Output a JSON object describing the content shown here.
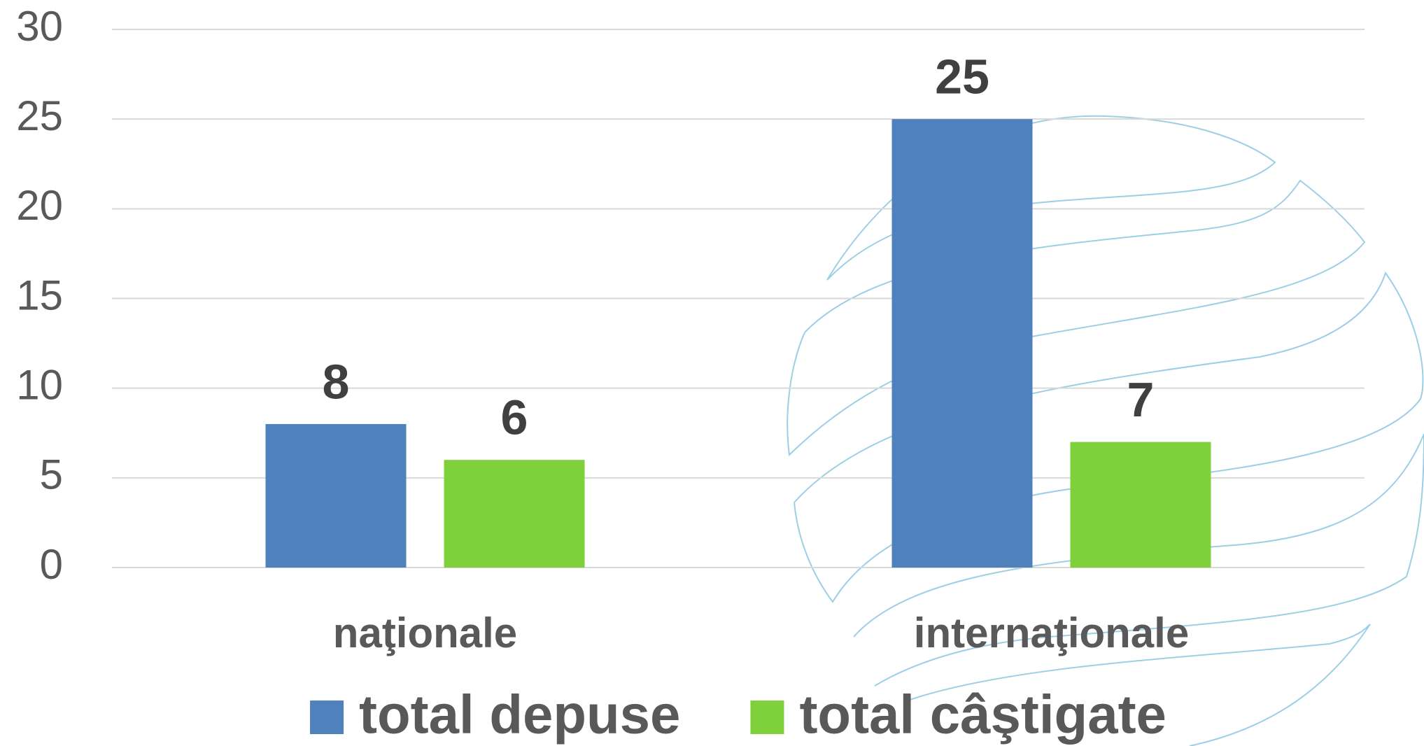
{
  "chart_data": {
    "type": "bar",
    "categories": [
      "naţionale",
      "internaţionale"
    ],
    "series": [
      {
        "name": "total depuse",
        "color": "#4f81bd",
        "values": [
          8,
          25
        ]
      },
      {
        "name": "total câştigate",
        "color": "#7ed13a",
        "values": [
          6,
          7
        ]
      }
    ],
    "ylim": [
      0,
      30
    ],
    "yticks": [
      0,
      5,
      10,
      15,
      20,
      25,
      30
    ],
    "grid": true,
    "legend": "bottom"
  }
}
